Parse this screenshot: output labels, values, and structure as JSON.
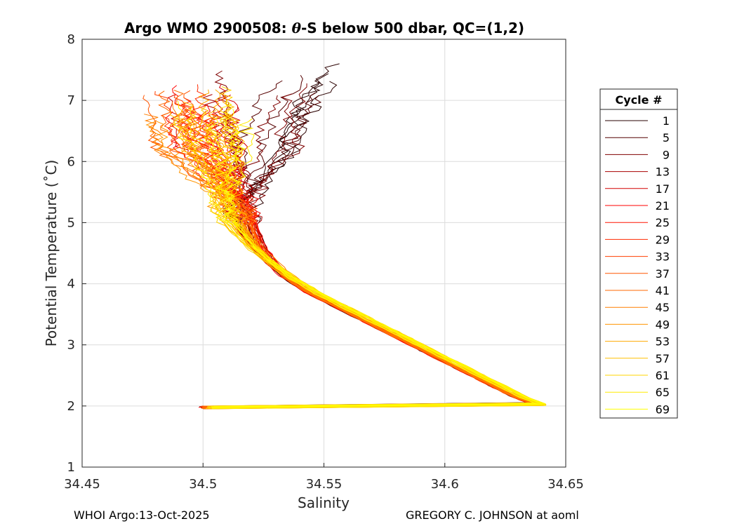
{
  "chart_data": {
    "type": "line",
    "title": "Argo WMO 2900508: θ-S below 500 dbar,  QC=(1,2)",
    "title_parts": {
      "prefix": "Argo WMO 2900508: ",
      "theta": "θ",
      "suffix": "-S below 500 dbar,  QC=(1,2)"
    },
    "xlabel": "Salinity",
    "ylabel": "Potential Temperature (˚C)",
    "xlim": [
      34.45,
      34.65
    ],
    "ylim": [
      1,
      8
    ],
    "xticks": [
      34.45,
      34.5,
      34.55,
      34.6,
      34.65
    ],
    "xtick_labels": [
      "34.45",
      "34.5",
      "34.55",
      "34.6",
      "34.65"
    ],
    "yticks": [
      1,
      2,
      3,
      4,
      5,
      6,
      7,
      8
    ],
    "ytick_labels": [
      "1",
      "2",
      "3",
      "4",
      "5",
      "6",
      "7",
      "8"
    ],
    "grid": true,
    "legend_placement": "outside-right",
    "legend": {
      "title": "Cycle #",
      "entries": [
        "1",
        "5",
        "9",
        "13",
        "17",
        "21",
        "25",
        "29",
        "33",
        "37",
        "41",
        "45",
        "49",
        "53",
        "57",
        "61",
        "65",
        "69"
      ],
      "colors": [
        "#2a0000",
        "#550000",
        "#7f0000",
        "#aa0000",
        "#d40000",
        "#ff0000",
        "#ff1500",
        "#ff2a00",
        "#ff3f00",
        "#ff5500",
        "#ff6a00",
        "#ff7f00",
        "#ff9400",
        "#ffaa00",
        "#ffbf00",
        "#ffd400",
        "#ffea00",
        "#ffff00"
      ]
    },
    "representative_profile": {
      "note_free": true,
      "salinity": [
        34.64,
        34.63,
        34.62,
        34.6,
        34.58,
        34.56,
        34.545,
        34.535,
        34.528,
        34.522,
        34.518,
        34.515,
        34.513,
        34.511,
        34.509,
        34.507,
        34.505,
        34.503,
        34.502,
        34.501
      ],
      "theta": [
        2.0,
        2.15,
        2.35,
        2.75,
        3.15,
        3.55,
        3.85,
        4.1,
        4.35,
        4.6,
        4.85,
        5.1,
        5.35,
        5.6,
        5.85,
        6.1,
        6.35,
        6.6,
        6.85,
        7.1
      ]
    },
    "series_style": {
      "count": 18,
      "color_scale": "dark red to yellow"
    }
  },
  "footer": {
    "left": "WHOI Argo:13-Oct-2025",
    "right": "GREGORY C. JOHNSON at aoml"
  }
}
